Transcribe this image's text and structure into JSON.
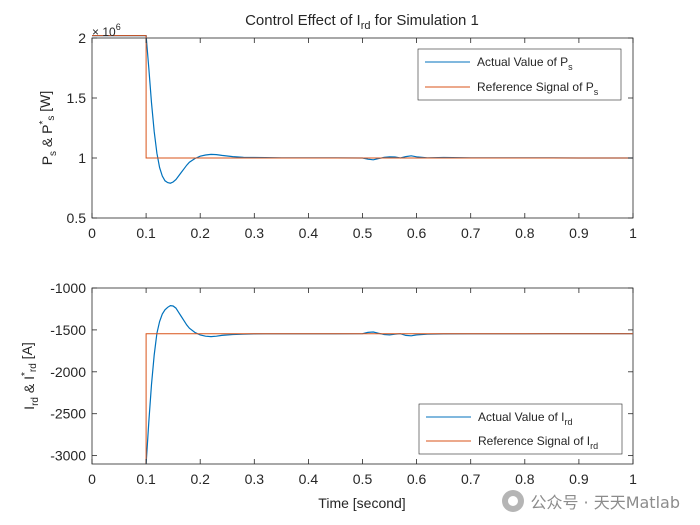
{
  "chart_data": [
    {
      "type": "line",
      "title_main": "Control Effect of I",
      "title_sub": "rd",
      "title_rest": " for Simulation 1",
      "exponent": {
        "base": "× 10",
        "power": "6"
      },
      "ylabel": {
        "parts": [
          [
            "P",
            ""
          ],
          [
            "s",
            "sub"
          ],
          [
            " & P",
            ""
          ],
          [
            "*",
            "sup"
          ],
          [
            "s",
            "sub"
          ],
          [
            " [W]",
            ""
          ]
        ]
      },
      "xlim": [
        0,
        1
      ],
      "ylim": [
        0.5,
        2.0
      ],
      "xticks": [
        0,
        0.1,
        0.2,
        0.3,
        0.4,
        0.5,
        0.6,
        0.7,
        0.8,
        0.9,
        1
      ],
      "xtick_labels": [
        "0",
        "0.1",
        "0.2",
        "0.3",
        "0.4",
        "0.5",
        "0.6",
        "0.7",
        "0.8",
        "0.9",
        "1"
      ],
      "yticks": [
        0.5,
        1,
        1.5,
        2
      ],
      "ytick_labels": [
        "0.5",
        "1",
        "1.5",
        "2"
      ],
      "grid": false,
      "legend_position": "top-right",
      "series": [
        {
          "name": "Actual Value of P",
          "name_sub": "s",
          "color": "#0072BD",
          "style": "solid",
          "x": [
            0,
            0.1,
            0.1,
            0.105,
            0.11,
            0.115,
            0.12,
            0.125,
            0.13,
            0.135,
            0.14,
            0.145,
            0.15,
            0.155,
            0.16,
            0.165,
            0.17,
            0.175,
            0.18,
            0.19,
            0.2,
            0.21,
            0.22,
            0.23,
            0.24,
            0.26,
            0.28,
            0.3,
            0.32,
            0.35,
            0.4,
            0.45,
            0.5,
            0.51,
            0.52,
            0.53,
            0.54,
            0.55,
            0.56,
            0.57,
            0.58,
            0.59,
            0.6,
            0.62,
            0.65,
            0.7,
            0.75,
            0.8,
            0.85,
            0.9,
            0.95,
            1.0
          ],
          "y": [
            2.02,
            2.02,
            2.02,
            1.75,
            1.46,
            1.22,
            1.04,
            0.92,
            0.85,
            0.81,
            0.795,
            0.79,
            0.8,
            0.82,
            0.85,
            0.88,
            0.91,
            0.94,
            0.965,
            0.995,
            1.015,
            1.025,
            1.03,
            1.028,
            1.022,
            1.012,
            1.006,
            1.004,
            1.003,
            1.002,
            1.002,
            1.001,
            1.0,
            0.99,
            0.985,
            0.995,
            1.005,
            1.01,
            1.008,
            1.0,
            1.012,
            1.018,
            1.01,
            1.002,
            1.004,
            1.002,
            1.001,
            1.001,
            1.001,
            1.0,
            1.0,
            1.0
          ]
        },
        {
          "name": "Reference Signal of P",
          "name_sub": "s",
          "color": "#D95319",
          "style": "step",
          "x": [
            0,
            0.1,
            0.1,
            1.0
          ],
          "y": [
            2.02,
            2.02,
            1.0,
            1.0
          ]
        }
      ]
    },
    {
      "type": "line",
      "ylabel": {
        "parts": [
          [
            "I",
            ""
          ],
          [
            "rd",
            "sub"
          ],
          [
            " & I",
            ""
          ],
          [
            "*",
            "sup"
          ],
          [
            "rd",
            "sub"
          ],
          [
            " [A]",
            ""
          ]
        ]
      },
      "xlabel": "Time [second]",
      "xlim": [
        0,
        1
      ],
      "ylim": [
        -3100,
        -1000
      ],
      "xticks": [
        0,
        0.1,
        0.2,
        0.3,
        0.4,
        0.5,
        0.6,
        0.7,
        0.8,
        0.9,
        1
      ],
      "xtick_labels": [
        "0",
        "0.1",
        "0.2",
        "0.3",
        "0.4",
        "0.5",
        "0.6",
        "0.7",
        "0.8",
        "0.9",
        "1"
      ],
      "yticks": [
        -3000,
        -2500,
        -2000,
        -1500,
        -1000
      ],
      "ytick_labels": [
        "-3000",
        "-2500",
        "-2000",
        "-1500",
        "-1000"
      ],
      "grid": false,
      "legend_position": "bottom-right",
      "series": [
        {
          "name": "Actual Value of I",
          "name_sub": "rd",
          "color": "#0072BD",
          "style": "solid",
          "x": [
            0.1,
            0.102,
            0.105,
            0.11,
            0.115,
            0.12,
            0.125,
            0.13,
            0.135,
            0.14,
            0.145,
            0.15,
            0.155,
            0.16,
            0.165,
            0.17,
            0.175,
            0.18,
            0.19,
            0.2,
            0.21,
            0.22,
            0.23,
            0.24,
            0.26,
            0.28,
            0.3,
            0.32,
            0.35,
            0.4,
            0.45,
            0.5,
            0.51,
            0.52,
            0.53,
            0.54,
            0.55,
            0.56,
            0.57,
            0.58,
            0.59,
            0.6,
            0.62,
            0.65,
            0.7,
            0.75,
            0.8,
            0.85,
            0.9,
            0.95,
            1.0
          ],
          "y": [
            -3100,
            -2900,
            -2600,
            -2150,
            -1800,
            -1540,
            -1400,
            -1310,
            -1260,
            -1230,
            -1210,
            -1215,
            -1240,
            -1290,
            -1340,
            -1390,
            -1440,
            -1480,
            -1530,
            -1560,
            -1575,
            -1580,
            -1575,
            -1565,
            -1555,
            -1550,
            -1548,
            -1547,
            -1546,
            -1546,
            -1546,
            -1545,
            -1530,
            -1525,
            -1540,
            -1555,
            -1560,
            -1550,
            -1545,
            -1565,
            -1570,
            -1560,
            -1550,
            -1548,
            -1546,
            -1546,
            -1546,
            -1545,
            -1545,
            -1545,
            -1545
          ]
        },
        {
          "name": "Reference Signal of I",
          "name_sub": "rd",
          "color": "#D95319",
          "style": "step",
          "x": [
            0.1,
            0.1,
            1.0
          ],
          "y": [
            -3100,
            -1545,
            -1545
          ]
        }
      ]
    }
  ],
  "watermark": {
    "text": "公众号 · 天天Matlab",
    "icon": "wechat-icon"
  }
}
